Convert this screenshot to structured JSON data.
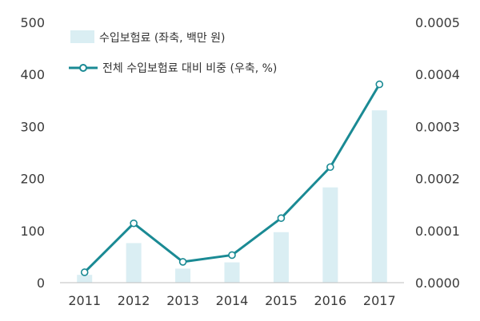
{
  "chart_data": {
    "type": "bar",
    "categories": [
      "2011",
      "2012",
      "2013",
      "2014",
      "2015",
      "2016",
      "2017"
    ],
    "series": [
      {
        "name": "수입보험료 (좌축, 백만 원)",
        "type": "bar",
        "axis": "left",
        "color": "#daeef3",
        "values": [
          15,
          76,
          27,
          39,
          97,
          183,
          331
        ]
      },
      {
        "name": "전체 수입보험료 대비 비중 (우축, %)",
        "type": "line",
        "axis": "right",
        "color": "#1a8a94",
        "values": [
          2e-05,
          0.000114,
          4e-05,
          5.3e-05,
          0.000124,
          0.000222,
          0.000381
        ]
      }
    ],
    "y_left": {
      "lim": [
        0,
        500
      ],
      "ticks": [
        "0",
        "100",
        "200",
        "300",
        "400",
        "500"
      ]
    },
    "y_right": {
      "lim": [
        0,
        0.0005
      ],
      "ticks": [
        "0.0000",
        "0.0001",
        "0.0002",
        "0.0003",
        "0.0004",
        "0.0005"
      ]
    },
    "grid": false,
    "legend_position": "top-left"
  }
}
